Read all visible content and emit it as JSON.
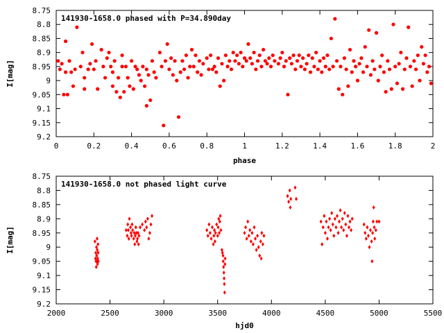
{
  "chart_data": [
    {
      "type": "scatter",
      "title": "141930-1658.0 phased with P=34.890day",
      "xlabel": "phase",
      "ylabel": "I[mag]",
      "xlim": [
        0,
        2
      ],
      "ylim": [
        9.2,
        8.75
      ],
      "y_inverted": true,
      "xticks": [
        "0",
        "0.2",
        "0.4",
        "0.6",
        "0.8",
        "1",
        "1.2",
        "1.4",
        "1.6",
        "1.8",
        "2"
      ],
      "yticks": [
        "8.75",
        "8.8",
        "8.85",
        "8.9",
        "8.95",
        "9",
        "9.05",
        "9.1",
        "9.15",
        "9.2"
      ],
      "grid": false,
      "marker_color": "#ff0000",
      "points": [
        [
          0.01,
          8.93
        ],
        [
          0.02,
          8.96
        ],
        [
          0.03,
          8.94
        ],
        [
          0.04,
          9.05
        ],
        [
          0.05,
          8.86
        ],
        [
          0.05,
          8.97
        ],
        [
          0.06,
          9.05
        ],
        [
          0.07,
          8.93
        ],
        [
          0.08,
          8.97
        ],
        [
          0.09,
          9.02
        ],
        [
          0.1,
          8.96
        ],
        [
          0.11,
          8.81
        ],
        [
          0.13,
          8.95
        ],
        [
          0.14,
          8.9
        ],
        [
          0.15,
          8.99
        ],
        [
          0.15,
          9.03
        ],
        [
          0.17,
          8.96
        ],
        [
          0.18,
          8.94
        ],
        [
          0.19,
          8.87
        ],
        [
          0.2,
          8.96
        ],
        [
          0.21,
          8.93
        ],
        [
          0.22,
          9.03
        ],
        [
          0.24,
          8.89
        ],
        [
          0.25,
          8.95
        ],
        [
          0.26,
          8.99
        ],
        [
          0.27,
          8.92
        ],
        [
          0.28,
          8.9
        ],
        [
          0.29,
          8.95
        ],
        [
          0.3,
          8.97
        ],
        [
          0.3,
          9.02
        ],
        [
          0.31,
          8.93
        ],
        [
          0.32,
          9.04
        ],
        [
          0.33,
          8.99
        ],
        [
          0.34,
          9.06
        ],
        [
          0.35,
          8.95
        ],
        [
          0.35,
          8.91
        ],
        [
          0.36,
          9.04
        ],
        [
          0.37,
          8.95
        ],
        [
          0.38,
          8.99
        ],
        [
          0.39,
          9.02
        ],
        [
          0.4,
          8.93
        ],
        [
          0.41,
          9.03
        ],
        [
          0.42,
          8.95
        ],
        [
          0.43,
          8.96
        ],
        [
          0.44,
          8.98
        ],
        [
          0.45,
          9.0
        ],
        [
          0.46,
          8.95
        ],
        [
          0.47,
          9.02
        ],
        [
          0.48,
          8.96
        ],
        [
          0.48,
          9.09
        ],
        [
          0.49,
          8.98
        ],
        [
          0.5,
          9.07
        ],
        [
          0.51,
          8.93
        ],
        [
          0.52,
          8.97
        ],
        [
          0.53,
          8.99
        ],
        [
          0.55,
          8.9
        ],
        [
          0.56,
          8.95
        ],
        [
          0.57,
          9.16
        ],
        [
          0.58,
          8.93
        ],
        [
          0.59,
          8.87
        ],
        [
          0.6,
          8.96
        ],
        [
          0.61,
          8.92
        ],
        [
          0.62,
          8.98
        ],
        [
          0.63,
          8.93
        ],
        [
          0.64,
          9.0
        ],
        [
          0.65,
          9.13
        ],
        [
          0.66,
          8.97
        ],
        [
          0.67,
          8.93
        ],
        [
          0.68,
          8.96
        ],
        [
          0.69,
          8.91
        ],
        [
          0.7,
          8.99
        ],
        [
          0.71,
          8.95
        ],
        [
          0.72,
          8.89
        ],
        [
          0.73,
          8.95
        ],
        [
          0.74,
          8.91
        ],
        [
          0.75,
          8.97
        ],
        [
          0.76,
          8.93
        ],
        [
          0.77,
          8.98
        ],
        [
          0.78,
          8.94
        ],
        [
          0.8,
          8.92
        ],
        [
          0.81,
          8.96
        ],
        [
          0.82,
          8.91
        ],
        [
          0.83,
          8.96
        ],
        [
          0.84,
          8.95
        ],
        [
          0.85,
          8.97
        ],
        [
          0.86,
          8.92
        ],
        [
          0.87,
          9.02
        ],
        [
          0.88,
          8.94
        ],
        [
          0.89,
          9.0
        ],
        [
          0.9,
          8.91
        ],
        [
          0.91,
          8.95
        ],
        [
          0.92,
          8.93
        ],
        [
          0.93,
          8.96
        ],
        [
          0.94,
          8.9
        ],
        [
          0.95,
          8.93
        ],
        [
          0.96,
          8.91
        ],
        [
          0.97,
          8.94
        ],
        [
          0.98,
          8.9
        ],
        [
          0.99,
          8.95
        ],
        [
          1.0,
          8.92
        ],
        [
          1.01,
          8.93
        ],
        [
          1.02,
          8.87
        ],
        [
          1.03,
          8.92
        ],
        [
          1.04,
          8.94
        ],
        [
          1.05,
          8.9
        ],
        [
          1.06,
          8.96
        ],
        [
          1.07,
          8.93
        ],
        [
          1.08,
          8.91
        ],
        [
          1.09,
          8.95
        ],
        [
          1.1,
          8.89
        ],
        [
          1.11,
          8.93
        ],
        [
          1.12,
          8.94
        ],
        [
          1.13,
          8.92
        ],
        [
          1.14,
          8.95
        ],
        [
          1.15,
          8.91
        ],
        [
          1.16,
          8.93
        ],
        [
          1.18,
          8.94
        ],
        [
          1.19,
          8.92
        ],
        [
          1.2,
          8.9
        ],
        [
          1.21,
          8.95
        ],
        [
          1.22,
          8.93
        ],
        [
          1.23,
          9.05
        ],
        [
          1.24,
          8.92
        ],
        [
          1.25,
          8.94
        ],
        [
          1.26,
          8.91
        ],
        [
          1.27,
          8.96
        ],
        [
          1.28,
          8.93
        ],
        [
          1.29,
          8.91
        ],
        [
          1.3,
          8.95
        ],
        [
          1.31,
          8.92
        ],
        [
          1.32,
          8.96
        ],
        [
          1.33,
          8.94
        ],
        [
          1.34,
          8.91
        ],
        [
          1.35,
          8.97
        ],
        [
          1.36,
          8.92
        ],
        [
          1.37,
          8.95
        ],
        [
          1.38,
          8.9
        ],
        [
          1.39,
          8.96
        ],
        [
          1.4,
          8.93
        ],
        [
          1.41,
          8.97
        ],
        [
          1.42,
          8.92
        ],
        [
          1.43,
          8.95
        ],
        [
          1.44,
          8.91
        ],
        [
          1.45,
          8.96
        ],
        [
          1.46,
          8.85
        ],
        [
          1.47,
          8.95
        ],
        [
          1.48,
          8.78
        ],
        [
          1.49,
          8.93
        ],
        [
          1.5,
          9.03
        ],
        [
          1.51,
          8.95
        ],
        [
          1.52,
          9.05
        ],
        [
          1.53,
          8.92
        ],
        [
          1.54,
          8.96
        ],
        [
          1.55,
          9.02
        ],
        [
          1.56,
          8.89
        ],
        [
          1.57,
          8.97
        ],
        [
          1.58,
          8.93
        ],
        [
          1.59,
          8.95
        ],
        [
          1.6,
          9.0
        ],
        [
          1.61,
          8.94
        ],
        [
          1.62,
          8.92
        ],
        [
          1.63,
          8.97
        ],
        [
          1.64,
          8.88
        ],
        [
          1.65,
          8.95
        ],
        [
          1.66,
          8.82
        ],
        [
          1.67,
          8.98
        ],
        [
          1.68,
          8.93
        ],
        [
          1.69,
          8.96
        ],
        [
          1.7,
          8.83
        ],
        [
          1.71,
          9.0
        ],
        [
          1.72,
          8.95
        ],
        [
          1.73,
          8.91
        ],
        [
          1.74,
          8.97
        ],
        [
          1.75,
          9.04
        ],
        [
          1.76,
          8.93
        ],
        [
          1.77,
          8.96
        ],
        [
          1.78,
          9.03
        ],
        [
          1.79,
          8.8
        ],
        [
          1.8,
          8.95
        ],
        [
          1.81,
          9.01
        ],
        [
          1.82,
          8.94
        ],
        [
          1.83,
          8.9
        ],
        [
          1.84,
          9.03
        ],
        [
          1.85,
          8.96
        ],
        [
          1.86,
          8.92
        ],
        [
          1.87,
          8.81
        ],
        [
          1.88,
          8.95
        ],
        [
          1.89,
          9.02
        ],
        [
          1.9,
          8.93
        ],
        [
          1.91,
          8.96
        ],
        [
          1.92,
          8.91
        ],
        [
          1.93,
          9.0
        ],
        [
          1.94,
          8.88
        ],
        [
          1.95,
          8.94
        ],
        [
          1.96,
          8.91
        ],
        [
          1.97,
          8.97
        ],
        [
          1.98,
          8.95
        ],
        [
          1.99,
          9.01
        ]
      ]
    },
    {
      "type": "scatter",
      "title": "141930-1658.0 not phased light curve",
      "xlabel": "hjd0",
      "ylabel": "I[mag]",
      "xlim": [
        2000,
        5500
      ],
      "ylim": [
        9.2,
        8.75
      ],
      "y_inverted": true,
      "xticks": [
        "2000",
        "2500",
        "3000",
        "3500",
        "4000",
        "4500",
        "5000",
        "5500"
      ],
      "yticks": [
        "8.75",
        "8.8",
        "8.85",
        "8.9",
        "8.95",
        "9",
        "9.05",
        "9.1",
        "9.15",
        "9.2"
      ],
      "grid": false,
      "marker_color": "#ff0000",
      "points": [
        [
          2360,
          8.98
        ],
        [
          2365,
          9.04
        ],
        [
          2368,
          9.02
        ],
        [
          2370,
          9.05
        ],
        [
          2372,
          9.07
        ],
        [
          2374,
          9.0
        ],
        [
          2376,
          9.03
        ],
        [
          2378,
          9.05
        ],
        [
          2380,
          8.97
        ],
        [
          2382,
          9.01
        ],
        [
          2384,
          9.06
        ],
        [
          2386,
          9.04
        ],
        [
          2388,
          8.99
        ],
        [
          2390,
          9.02
        ],
        [
          2392,
          9.05
        ],
        [
          2650,
          8.94
        ],
        [
          2660,
          8.96
        ],
        [
          2665,
          8.92
        ],
        [
          2670,
          8.94
        ],
        [
          2675,
          8.97
        ],
        [
          2680,
          8.9
        ],
        [
          2690,
          8.93
        ],
        [
          2695,
          8.95
        ],
        [
          2700,
          8.96
        ],
        [
          2705,
          8.92
        ],
        [
          2710,
          8.94
        ],
        [
          2720,
          8.97
        ],
        [
          2725,
          8.95
        ],
        [
          2730,
          8.99
        ],
        [
          2735,
          8.96
        ],
        [
          2740,
          8.93
        ],
        [
          2745,
          8.95
        ],
        [
          2750,
          8.98
        ],
        [
          2755,
          8.97
        ],
        [
          2760,
          8.95
        ],
        [
          2765,
          8.99
        ],
        [
          2770,
          8.96
        ],
        [
          2780,
          8.93
        ],
        [
          2800,
          8.92
        ],
        [
          2820,
          8.94
        ],
        [
          2830,
          8.91
        ],
        [
          2840,
          8.93
        ],
        [
          2850,
          8.9
        ],
        [
          2860,
          8.97
        ],
        [
          2870,
          8.95
        ],
        [
          2880,
          8.92
        ],
        [
          2890,
          8.89
        ],
        [
          3400,
          8.94
        ],
        [
          3410,
          8.96
        ],
        [
          3420,
          8.92
        ],
        [
          3430,
          8.95
        ],
        [
          3440,
          8.97
        ],
        [
          3450,
          8.93
        ],
        [
          3460,
          8.99
        ],
        [
          3465,
          8.96
        ],
        [
          3470,
          8.94
        ],
        [
          3475,
          8.98
        ],
        [
          3480,
          8.95
        ],
        [
          3490,
          8.92
        ],
        [
          3500,
          8.96
        ],
        [
          3505,
          8.93
        ],
        [
          3510,
          8.9
        ],
        [
          3515,
          8.95
        ],
        [
          3520,
          8.91
        ],
        [
          3525,
          8.89
        ],
        [
          3530,
          8.94
        ],
        [
          3540,
          9.01
        ],
        [
          3545,
          9.02
        ],
        [
          3550,
          9.03
        ],
        [
          3552,
          9.05
        ],
        [
          3555,
          9.07
        ],
        [
          3558,
          9.09
        ],
        [
          3560,
          9.11
        ],
        [
          3562,
          9.13
        ],
        [
          3565,
          9.16
        ],
        [
          3568,
          9.06
        ],
        [
          3570,
          9.04
        ],
        [
          3750,
          8.95
        ],
        [
          3760,
          8.93
        ],
        [
          3770,
          8.97
        ],
        [
          3780,
          8.91
        ],
        [
          3790,
          8.96
        ],
        [
          3800,
          8.94
        ],
        [
          3810,
          8.98
        ],
        [
          3820,
          8.95
        ],
        [
          3830,
          8.99
        ],
        [
          3840,
          8.93
        ],
        [
          3850,
          8.97
        ],
        [
          3860,
          9.01
        ],
        [
          3870,
          8.96
        ],
        [
          3880,
          9.0
        ],
        [
          3890,
          9.03
        ],
        [
          3900,
          8.98
        ],
        [
          3905,
          9.04
        ],
        [
          3910,
          8.95
        ],
        [
          3920,
          8.99
        ],
        [
          3930,
          8.96
        ],
        [
          4150,
          8.82
        ],
        [
          4160,
          8.84
        ],
        [
          4170,
          8.8
        ],
        [
          4175,
          8.86
        ],
        [
          4180,
          8.83
        ],
        [
          4220,
          8.79
        ],
        [
          4230,
          8.83
        ],
        [
          4460,
          8.91
        ],
        [
          4470,
          8.99
        ],
        [
          4480,
          8.93
        ],
        [
          4490,
          8.89
        ],
        [
          4500,
          8.95
        ],
        [
          4510,
          8.91
        ],
        [
          4520,
          8.97
        ],
        [
          4530,
          8.93
        ],
        [
          4540,
          8.9
        ],
        [
          4550,
          8.94
        ],
        [
          4560,
          8.88
        ],
        [
          4570,
          8.92
        ],
        [
          4580,
          8.96
        ],
        [
          4590,
          8.9
        ],
        [
          4600,
          8.93
        ],
        [
          4610,
          8.89
        ],
        [
          4620,
          8.95
        ],
        [
          4630,
          8.91
        ],
        [
          4640,
          8.87
        ],
        [
          4650,
          8.93
        ],
        [
          4660,
          8.9
        ],
        [
          4670,
          8.94
        ],
        [
          4680,
          8.88
        ],
        [
          4690,
          8.92
        ],
        [
          4700,
          8.96
        ],
        [
          4710,
          8.89
        ],
        [
          4720,
          8.93
        ],
        [
          4730,
          8.91
        ],
        [
          4740,
          8.94
        ],
        [
          4750,
          8.9
        ],
        [
          4860,
          8.92
        ],
        [
          4870,
          8.95
        ],
        [
          4880,
          8.97
        ],
        [
          4890,
          8.93
        ],
        [
          4900,
          8.96
        ],
        [
          4910,
          9.0
        ],
        [
          4920,
          8.94
        ],
        [
          4930,
          8.98
        ],
        [
          4935,
          9.05
        ],
        [
          4940,
          8.95
        ],
        [
          4945,
          8.91
        ],
        [
          4950,
          8.86
        ],
        [
          4955,
          8.93
        ],
        [
          4960,
          8.97
        ],
        [
          4970,
          8.94
        ],
        [
          4980,
          8.91
        ],
        [
          5000,
          8.91
        ]
      ]
    }
  ]
}
